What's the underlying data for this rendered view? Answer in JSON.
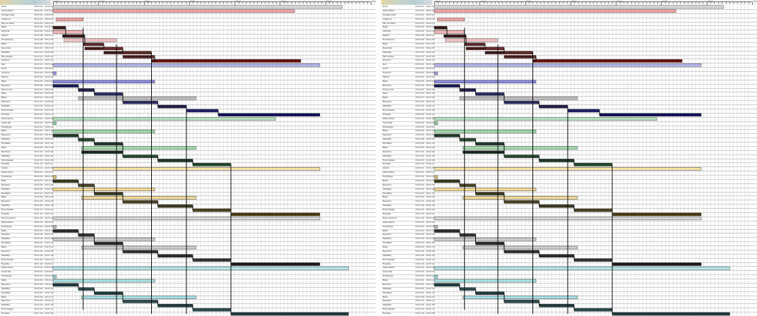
{
  "ruler_labels": [
    "2018",
    "2019",
    "2020",
    "2021",
    "2022",
    "2023",
    "2024",
    "2025"
  ],
  "colors": {
    "row_line": "#cfcfcf",
    "grid": "#e6e6e6",
    "link": "#111111",
    "bar_border": "#222222"
  },
  "icons": {
    "header_tag": "timeline-logo-icon"
  },
  "rows": [
    {
      "name": "Root",
      "d1": "2018-01",
      "d2": "2024-07"
    },
    {
      "name": "Alpha Main",
      "d1": "2018-01",
      "d2": "2023-04"
    },
    {
      "name": "Foreign task",
      "d1": "2018-02",
      "d2": "2018-03"
    },
    {
      "name": "Instance",
      "d1": "2018-02",
      "d2": "2018-09"
    },
    {
      "name": "Fat old start",
      "d1": "2018-03",
      "d2": "2018-10"
    },
    {
      "name": "Beta",
      "d1": "2018-04",
      "d2": "2018-08"
    },
    {
      "name": "Alt-First",
      "d1": "2018-05",
      "d2": "2018-12"
    },
    {
      "name": "Option",
      "d1": "2018-06",
      "d2": "2018-11"
    },
    {
      "name": "Framework",
      "d1": "2018-08",
      "d2": "2019-03"
    },
    {
      "name": "Beta",
      "d1": "2018-09",
      "d2": "2019-05"
    },
    {
      "name": "Recorder",
      "d1": "2019-01",
      "d2": "2019-07"
    },
    {
      "name": "Stability",
      "d1": "2019-03",
      "d2": "2020-02"
    },
    {
      "name": "Fat loaded",
      "d1": "2019-07",
      "d2": "2022-02"
    },
    {
      "name": "Rubicon",
      "d1": "2020-01",
      "d2": "2022-10"
    },
    {
      "name": "Gal",
      "d1": "2018-01",
      "d2": "2023-12"
    },
    {
      "name": "Unlit",
      "d1": "2018-02",
      "d2": "2018-03"
    },
    {
      "name": "Uniform",
      "d1": "2018-03",
      "d2": "2018-04"
    },
    {
      "name": "Option",
      "d1": "2018-04",
      "d2": "2020-04"
    },
    {
      "name": "Beta",
      "d1": "2018-05",
      "d2": "2018-12"
    },
    {
      "name": "Revision",
      "d1": "2018-06",
      "d2": "2019-04"
    },
    {
      "name": "Preconcile",
      "d1": "2018-07",
      "d2": "2019-06"
    },
    {
      "name": "Pass",
      "d1": "2018-09",
      "d2": "2021-03"
    },
    {
      "name": "Beta",
      "d1": "2018-10",
      "d2": "2019-09"
    },
    {
      "name": "Revision",
      "d1": "2019-01",
      "d2": "2020-03"
    },
    {
      "name": "Stability",
      "d1": "2019-05",
      "d2": "2020-10"
    },
    {
      "name": "Final tweak",
      "d1": "2019-09",
      "d2": "2021-06"
    },
    {
      "name": "Finalize",
      "d1": "2020-04",
      "d2": "2022-12"
    },
    {
      "name": "Alternative",
      "d1": "2018-01",
      "d2": "2022-06"
    },
    {
      "name": "Input Var",
      "d1": "2018-02",
      "d2": "2018-03"
    },
    {
      "name": "Prototype",
      "d1": "2018-03",
      "d2": "2020-04"
    },
    {
      "name": "Beta",
      "d1": "2018-04",
      "d2": "2019-02"
    },
    {
      "name": "Revision",
      "d1": "2018-05",
      "d2": "2019-07"
    },
    {
      "name": "Stability",
      "d1": "2018-06",
      "d2": "2020-04"
    },
    {
      "name": "Pre-Beta",
      "d1": "2018-08",
      "d2": "2021-03"
    },
    {
      "name": "Beta",
      "d1": "2018-09",
      "d2": "2019-09"
    },
    {
      "name": "Revision",
      "d1": "2019-01",
      "d2": "2020-04"
    },
    {
      "name": "Stability",
      "d1": "2019-06",
      "d2": "2021-06"
    },
    {
      "name": "Final tweak",
      "d1": "2020-01",
      "d2": "2022-08"
    },
    {
      "name": "Finalize",
      "d1": "2021-03",
      "d2": "2022-11"
    },
    {
      "name": "Alpha",
      "d1": "2018-01",
      "d2": "2024-01"
    },
    {
      "name": "Alternative",
      "d1": "2018-02",
      "d2": "2018-03"
    },
    {
      "name": "Prototype",
      "d1": "2018-02",
      "d2": "2018-10"
    },
    {
      "name": "Beta",
      "d1": "2018-03",
      "d2": "2019-05"
    },
    {
      "name": "Revision",
      "d1": "2018-04",
      "d2": "2019-06"
    },
    {
      "name": "Stability",
      "d1": "2018-05",
      "d2": "2020-04"
    },
    {
      "name": "Pre-Beta",
      "d1": "2018-07",
      "d2": "2021-02"
    },
    {
      "name": "Beta",
      "d1": "2018-08",
      "d2": "2019-09"
    },
    {
      "name": "Revision",
      "d1": "2019-01",
      "d2": "2020-04"
    },
    {
      "name": "Stability",
      "d1": "2019-06",
      "d2": "2021-06"
    },
    {
      "name": "Final tweak",
      "d1": "2020-01",
      "d2": "2022-09"
    },
    {
      "name": "Finalize",
      "d1": "2021-03",
      "d2": "2023-12"
    },
    {
      "name": "Final revision",
      "d1": "2021-06",
      "d2": "2023-12"
    },
    {
      "name": "Alternative",
      "d1": "2018-01",
      "d2": "2018-02"
    },
    {
      "name": "Prototype",
      "d1": "2018-02",
      "d2": "2018-05"
    },
    {
      "name": "Beta",
      "d1": "2018-03",
      "d2": "2019-01"
    },
    {
      "name": "Revision",
      "d1": "2018-04",
      "d2": "2019-05"
    },
    {
      "name": "Stability",
      "d1": "2018-05",
      "d2": "2020-04"
    },
    {
      "name": "Pre-Beta",
      "d1": "2018-07",
      "d2": "2021-03"
    },
    {
      "name": "Beta",
      "d1": "2018-09",
      "d2": "2019-10"
    },
    {
      "name": "Revision",
      "d1": "2019-02",
      "d2": "2020-05"
    },
    {
      "name": "Stability",
      "d1": "2019-06",
      "d2": "2021-06"
    },
    {
      "name": "Final tweak",
      "d1": "2020-02",
      "d2": "2022-10"
    },
    {
      "name": "Finalize",
      "d1": "2021-04",
      "d2": "2023-12"
    },
    {
      "name": "Alternative",
      "d1": "2018-01",
      "d2": "2024-08"
    },
    {
      "name": "Input Var",
      "d1": "2018-02",
      "d2": "2018-03"
    },
    {
      "name": "Prototype",
      "d1": "2018-03",
      "d2": "2020-04"
    },
    {
      "name": "Beta",
      "d1": "2018-04",
      "d2": "2018-11"
    },
    {
      "name": "Revision",
      "d1": "2018-05",
      "d2": "2019-06"
    },
    {
      "name": "Stability",
      "d1": "2018-06",
      "d2": "2020-04"
    },
    {
      "name": "Pre-Beta",
      "d1": "2018-07",
      "d2": "2021-03"
    },
    {
      "name": "Beta",
      "d1": "2018-08",
      "d2": "2019-12"
    },
    {
      "name": "Revision",
      "d1": "2019-01",
      "d2": "2020-12"
    },
    {
      "name": "Stability",
      "d1": "2019-04",
      "d2": "2021-06"
    },
    {
      "name": "Final tweak",
      "d1": "2020-03",
      "d2": "2022-11"
    },
    {
      "name": "Finalize",
      "d1": "2021-03",
      "d2": "2024-06"
    }
  ],
  "bars": [
    {
      "row": 0,
      "s": 0.0,
      "e": 0.91,
      "fill": "#d8d8d8"
    },
    {
      "row": 1,
      "s": 0.0,
      "e": 0.76,
      "fill": "#f2a5a5"
    },
    {
      "row": 3,
      "s": 0.01,
      "e": 0.095,
      "fill": "#f2a5a5"
    },
    {
      "row": 5,
      "s": 0.0,
      "e": 0.04,
      "fill": "#3a1a1a"
    },
    {
      "row": 6,
      "s": 0.0,
      "e": 0.095,
      "fill": "#f5b5b5"
    },
    {
      "row": 7,
      "s": 0.03,
      "e": 0.1,
      "fill": "#3a1a1a"
    },
    {
      "row": 8,
      "s": 0.035,
      "e": 0.2,
      "fill": "#f5c5c5"
    },
    {
      "row": 9,
      "s": 0.095,
      "e": 0.16,
      "fill": "#5a2a2a"
    },
    {
      "row": 10,
      "s": 0.1,
      "e": 0.22,
      "fill": "#6a2a2a"
    },
    {
      "row": 11,
      "s": 0.16,
      "e": 0.31,
      "fill": "#5a2a2a"
    },
    {
      "row": 12,
      "s": 0.22,
      "e": 0.32,
      "fill": "#6a2a2a"
    },
    {
      "row": 13,
      "s": 0.31,
      "e": 0.78,
      "fill": "#6a1010"
    },
    {
      "row": 14,
      "s": 0.0,
      "e": 0.84,
      "fill": "#b5b5ee"
    },
    {
      "row": 16,
      "s": 0.0,
      "e": 0.01,
      "fill": "#9a9adf"
    },
    {
      "row": 18,
      "s": 0.0,
      "e": 0.32,
      "fill": "#8a8add"
    },
    {
      "row": 19,
      "s": 0.0,
      "e": 0.08,
      "fill": "#1a1a55"
    },
    {
      "row": 20,
      "s": 0.08,
      "e": 0.13,
      "fill": "#20204a"
    },
    {
      "row": 21,
      "s": 0.13,
      "e": 0.22,
      "fill": "#2a2a60"
    },
    {
      "row": 22,
      "s": 0.08,
      "e": 0.45,
      "fill": "#bfbfbf"
    },
    {
      "row": 23,
      "s": 0.22,
      "e": 0.33,
      "fill": "#2a2a60"
    },
    {
      "row": 24,
      "s": 0.33,
      "e": 0.42,
      "fill": "#20204a"
    },
    {
      "row": 25,
      "s": 0.42,
      "e": 0.52,
      "fill": "#1f1f6a"
    },
    {
      "row": 26,
      "s": 0.52,
      "e": 0.84,
      "fill": "#12125a"
    },
    {
      "row": 27,
      "s": 0.0,
      "e": 0.7,
      "fill": "#b5e3bf"
    },
    {
      "row": 28,
      "s": 0.0,
      "e": 0.01,
      "fill": "#8acf97"
    },
    {
      "row": 30,
      "s": 0.0,
      "e": 0.32,
      "fill": "#9edca9"
    },
    {
      "row": 31,
      "s": 0.0,
      "e": 0.08,
      "fill": "#1e3a26"
    },
    {
      "row": 32,
      "s": 0.08,
      "e": 0.13,
      "fill": "#284a30"
    },
    {
      "row": 33,
      "s": 0.13,
      "e": 0.22,
      "fill": "#1e3a26"
    },
    {
      "row": 34,
      "s": 0.09,
      "e": 0.45,
      "fill": "#9edca9"
    },
    {
      "row": 35,
      "s": 0.09,
      "e": 0.22,
      "fill": "#1e3a26"
    },
    {
      "row": 36,
      "s": 0.22,
      "e": 0.33,
      "fill": "#284a30"
    },
    {
      "row": 37,
      "s": 0.33,
      "e": 0.44,
      "fill": "#1e3a26"
    },
    {
      "row": 38,
      "s": 0.44,
      "e": 0.56,
      "fill": "#1e4a2a"
    },
    {
      "row": 39,
      "s": 0.0,
      "e": 0.84,
      "fill": "#f5e3a8"
    },
    {
      "row": 41,
      "s": 0.0,
      "e": 0.01,
      "fill": "#d9c07a"
    },
    {
      "row": 42,
      "s": 0.0,
      "e": 0.08,
      "fill": "#3a3a20"
    },
    {
      "row": 43,
      "s": 0.08,
      "e": 0.13,
      "fill": "#4a4220"
    },
    {
      "row": 44,
      "s": 0.0,
      "e": 0.32,
      "fill": "#f0da95"
    },
    {
      "row": 45,
      "s": 0.13,
      "e": 0.22,
      "fill": "#3a3a20"
    },
    {
      "row": 46,
      "s": 0.09,
      "e": 0.45,
      "fill": "#f0da95"
    },
    {
      "row": 47,
      "s": 0.22,
      "e": 0.33,
      "fill": "#4a4220"
    },
    {
      "row": 48,
      "s": 0.33,
      "e": 0.44,
      "fill": "#3a3a20"
    },
    {
      "row": 49,
      "s": 0.44,
      "e": 0.56,
      "fill": "#4a4220"
    },
    {
      "row": 50,
      "s": 0.56,
      "e": 0.84,
      "fill": "#4a3a10"
    },
    {
      "row": 51,
      "s": 0.0,
      "e": 0.84,
      "fill": "#d8d8d8"
    },
    {
      "row": 53,
      "s": 0.0,
      "e": 0.01,
      "fill": "#bbbbbb"
    },
    {
      "row": 54,
      "s": 0.0,
      "e": 0.08,
      "fill": "#2a2a2a"
    },
    {
      "row": 55,
      "s": 0.08,
      "e": 0.13,
      "fill": "#333333"
    },
    {
      "row": 56,
      "s": 0.0,
      "e": 0.32,
      "fill": "#cccccc"
    },
    {
      "row": 57,
      "s": 0.13,
      "e": 0.22,
      "fill": "#2a2a2a"
    },
    {
      "row": 58,
      "s": 0.09,
      "e": 0.45,
      "fill": "#cccccc"
    },
    {
      "row": 59,
      "s": 0.22,
      "e": 0.33,
      "fill": "#333333"
    },
    {
      "row": 60,
      "s": 0.33,
      "e": 0.44,
      "fill": "#2a2a2a"
    },
    {
      "row": 61,
      "s": 0.44,
      "e": 0.56,
      "fill": "#333333"
    },
    {
      "row": 62,
      "s": 0.56,
      "e": 0.84,
      "fill": "#1a1a1a"
    },
    {
      "row": 63,
      "s": 0.0,
      "e": 0.93,
      "fill": "#b5e8ea"
    },
    {
      "row": 65,
      "s": 0.0,
      "e": 0.01,
      "fill": "#8fd3d7"
    },
    {
      "row": 66,
      "s": 0.0,
      "e": 0.32,
      "fill": "#a7e0e3"
    },
    {
      "row": 67,
      "s": 0.0,
      "e": 0.08,
      "fill": "#1f3a3c"
    },
    {
      "row": 68,
      "s": 0.08,
      "e": 0.13,
      "fill": "#2a4a4c"
    },
    {
      "row": 69,
      "s": 0.13,
      "e": 0.22,
      "fill": "#1f3a3c"
    },
    {
      "row": 70,
      "s": 0.09,
      "e": 0.45,
      "fill": "#a7e0e3"
    },
    {
      "row": 71,
      "s": 0.22,
      "e": 0.33,
      "fill": "#2a4a4c"
    },
    {
      "row": 72,
      "s": 0.33,
      "e": 0.44,
      "fill": "#1f3a3c"
    },
    {
      "row": 73,
      "s": 0.44,
      "e": 0.56,
      "fill": "#2a4a4c"
    },
    {
      "row": 74,
      "s": 0.56,
      "e": 0.93,
      "fill": "#1f3a3c"
    }
  ],
  "vlinks": [
    {
      "x": 0.095,
      "from": 5,
      "to": 73
    },
    {
      "x": 0.2,
      "from": 9,
      "to": 74
    },
    {
      "x": 0.31,
      "from": 11,
      "to": 74
    },
    {
      "x": 0.42,
      "from": 24,
      "to": 74
    },
    {
      "x": 0.56,
      "from": 38,
      "to": 74
    }
  ]
}
